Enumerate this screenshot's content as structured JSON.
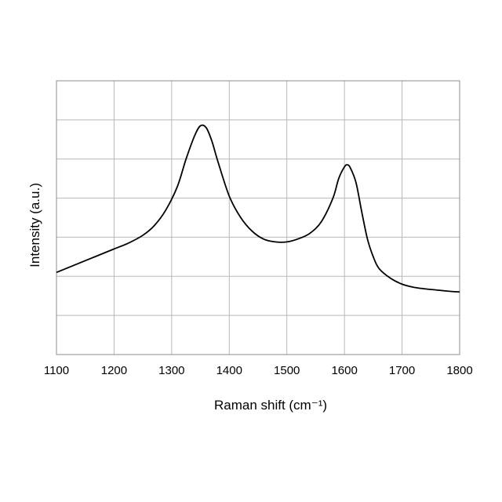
{
  "chart_data": {
    "type": "line",
    "title": "",
    "xlabel": "Raman shift (cm⁻¹)",
    "ylabel": "Intensity (a.u.)",
    "xlim": [
      1100,
      1800
    ],
    "ylim": [
      0,
      7
    ],
    "x_ticks": [
      "1100",
      "1200",
      "1300",
      "1400",
      "1500",
      "1600",
      "1700",
      "1800"
    ],
    "y_ticks_labeled": false,
    "y_gridlines": [
      1,
      2,
      3,
      4,
      5,
      6
    ],
    "grid": true,
    "line_color": "#000000",
    "series": [
      {
        "x": [
          1100,
          1125,
          1150,
          1175,
          1200,
          1225,
          1250,
          1270,
          1290,
          1310,
          1325,
          1340,
          1350,
          1360,
          1370,
          1380,
          1400,
          1420,
          1440,
          1460,
          1480,
          1500,
          1520,
          1540,
          1560,
          1580,
          1590,
          1600,
          1605,
          1610,
          1620,
          1630,
          1640,
          1650,
          1660,
          1680,
          1700,
          1720,
          1740,
          1760,
          1780,
          1800
        ],
        "y": [
          2.1,
          2.25,
          2.4,
          2.55,
          2.7,
          2.85,
          3.05,
          3.3,
          3.7,
          4.3,
          5.0,
          5.6,
          5.85,
          5.8,
          5.45,
          4.95,
          4.05,
          3.5,
          3.15,
          2.95,
          2.88,
          2.88,
          2.96,
          3.1,
          3.4,
          4.0,
          4.5,
          4.8,
          4.85,
          4.78,
          4.4,
          3.65,
          2.95,
          2.5,
          2.2,
          1.95,
          1.8,
          1.72,
          1.68,
          1.65,
          1.62,
          1.6
        ]
      }
    ]
  }
}
